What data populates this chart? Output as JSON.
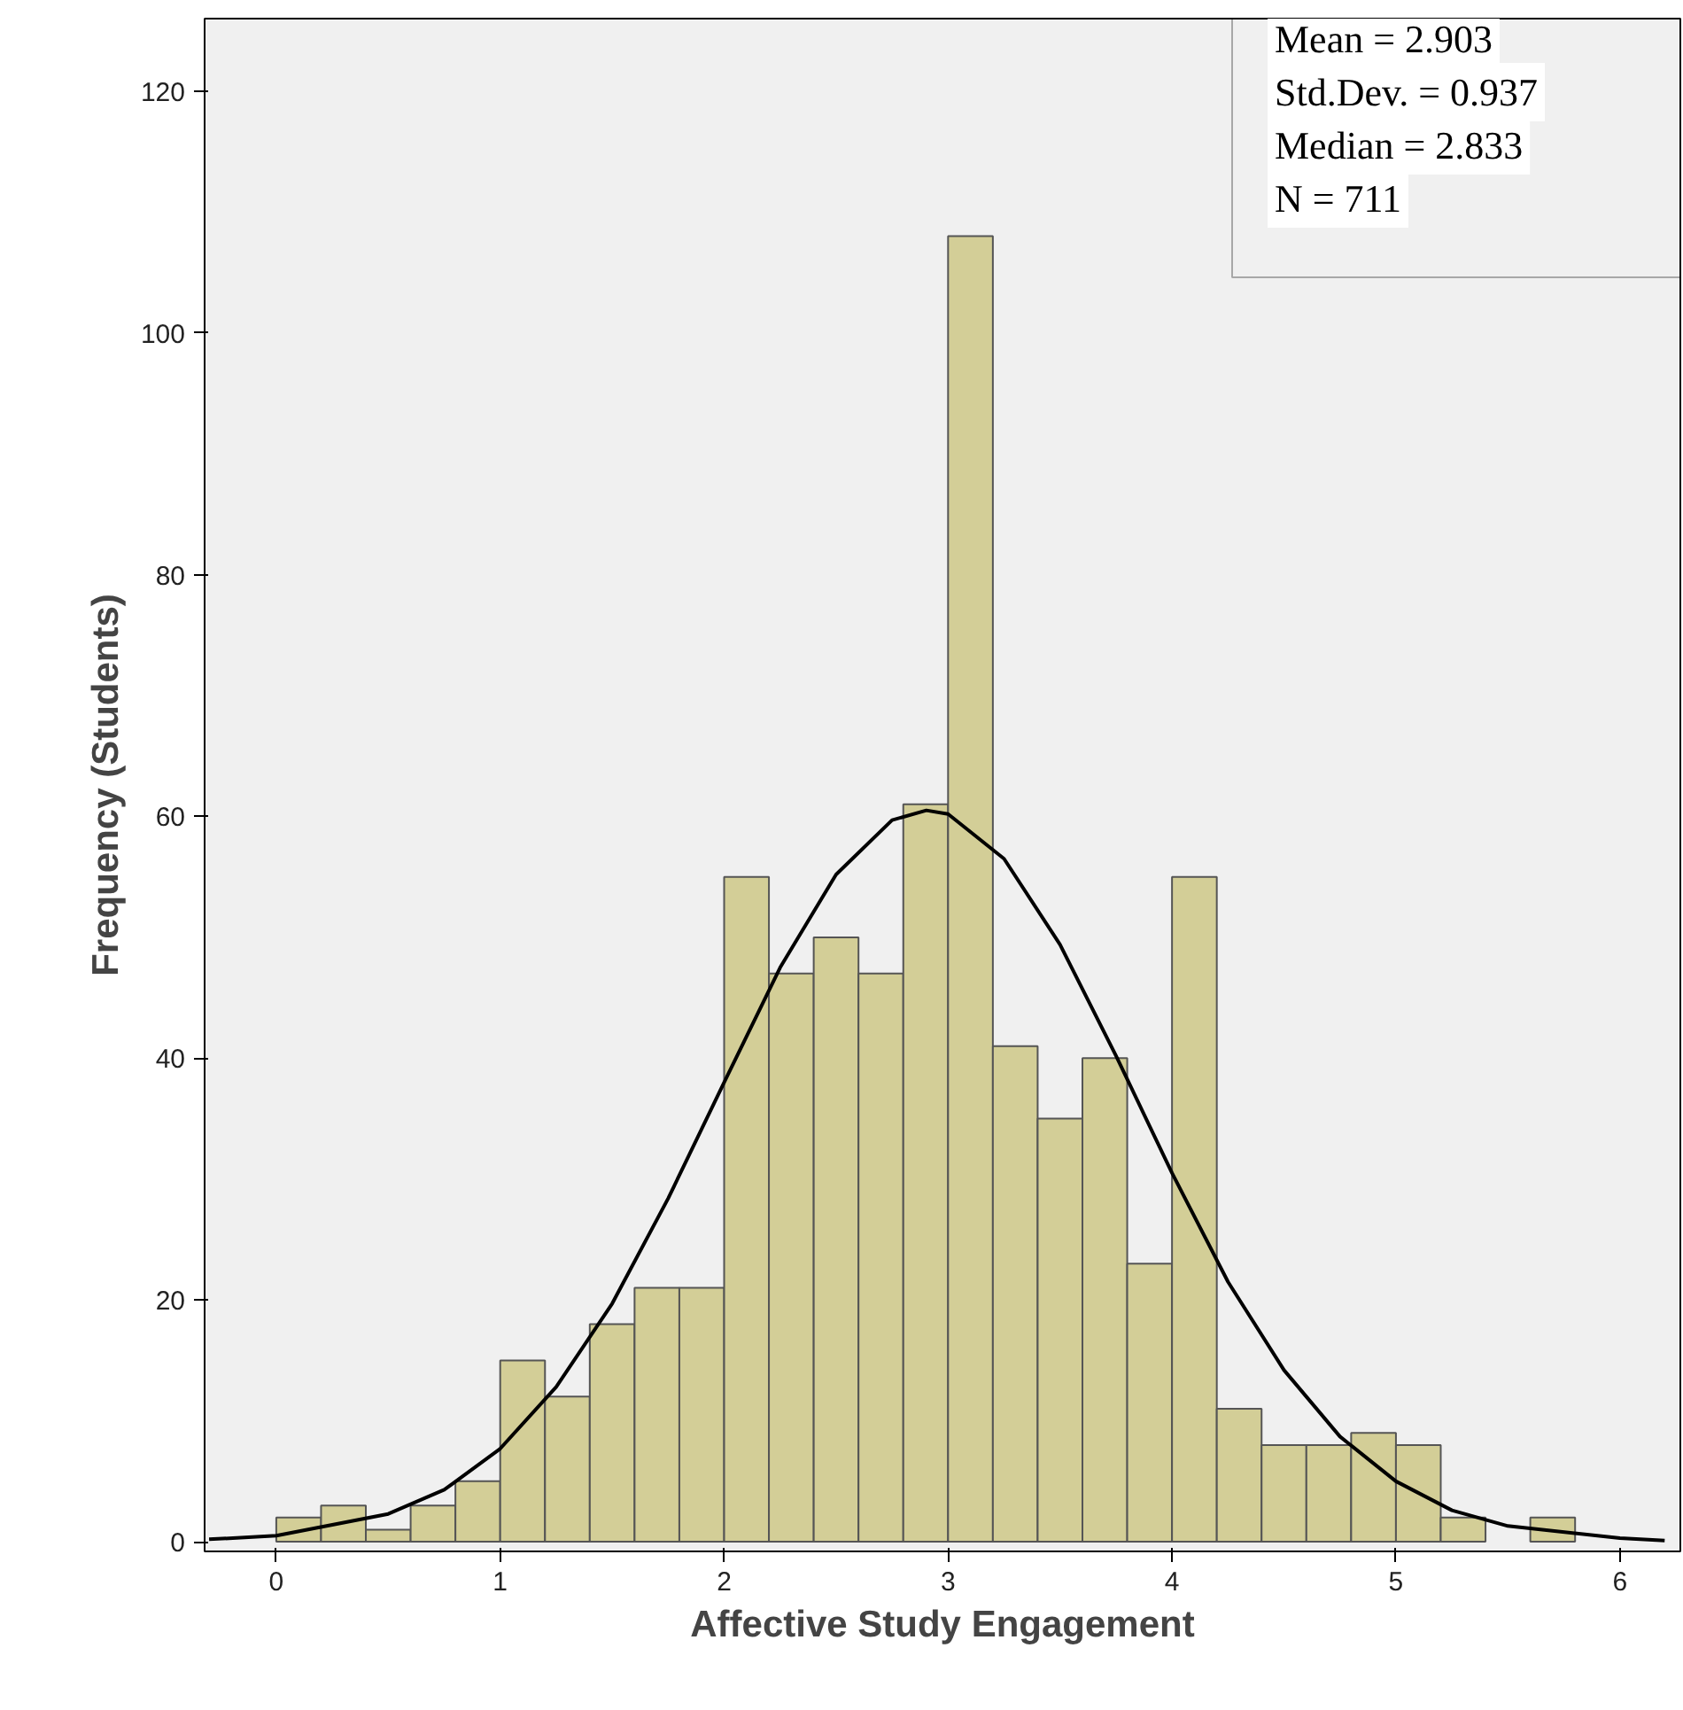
{
  "chart_data": {
    "type": "histogram",
    "xlabel": "Affective Study Engagement",
    "ylabel": "Frequency (Students)",
    "bins": [
      0,
      0.2,
      0.4,
      0.6,
      0.8,
      1.0,
      1.2,
      1.4,
      1.6,
      1.8,
      2.0,
      2.2,
      2.4,
      2.6,
      2.8,
      3.0,
      3.2,
      3.4,
      3.6,
      3.8,
      4.0,
      4.2,
      4.4,
      4.6,
      4.8,
      5.0,
      5.2,
      5.4,
      5.6,
      5.8
    ],
    "values": [
      2,
      3,
      1,
      3,
      5,
      15,
      12,
      18,
      21,
      21,
      55,
      47,
      50,
      47,
      61,
      108,
      41,
      35,
      40,
      23,
      55,
      11,
      8,
      8,
      9,
      8,
      2,
      null,
      2
    ],
    "color": "#d3ce97",
    "series": [
      {
        "type": "line",
        "color": "#000000",
        "x": [
          -0.3,
          0,
          0.5,
          0.75,
          1.0,
          1.25,
          1.5,
          1.75,
          2.0,
          2.25,
          2.5,
          2.75,
          2.903,
          3.0,
          3.25,
          3.5,
          3.75,
          4.0,
          4.25,
          4.5,
          4.75,
          5.0,
          5.25,
          5.5,
          6.0,
          6.2
        ],
        "values": [
          0.2,
          0.5,
          2.3,
          4.3,
          7.7,
          12.8,
          19.7,
          28.4,
          38.0,
          47.5,
          55.2,
          59.7,
          60.5,
          60.2,
          56.5,
          49.4,
          40.2,
          30.5,
          21.5,
          14.2,
          8.7,
          5.0,
          2.6,
          1.3,
          0.3,
          0.1
        ]
      }
    ],
    "xlim": [
      -0.32,
      6.27
    ],
    "ylim": [
      -0.8,
      126
    ],
    "xticks": [
      0,
      1,
      2,
      3,
      4,
      5,
      6
    ],
    "yticks": [
      0,
      20,
      40,
      60,
      80,
      100,
      120
    ],
    "grid": false,
    "line_style": "solid",
    "marker": "none",
    "annotations": [
      "Mean = 2.903",
      "Std.Dev. = 0.937",
      "Median = 2.833",
      "N = 711"
    ]
  }
}
